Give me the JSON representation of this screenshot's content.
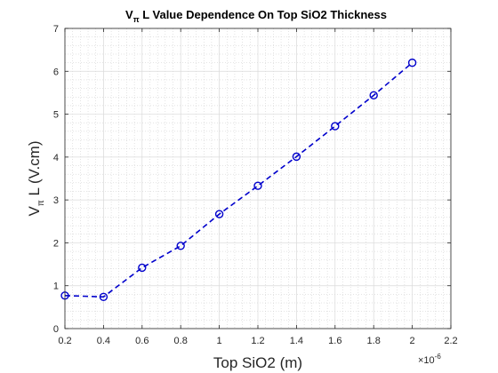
{
  "chart_data": {
    "type": "line",
    "title": {
      "main": "V",
      "sub": "π",
      "rest": " L Value Dependence On Top SiO2 Thickness"
    },
    "xlabel": "Top SiO2 (m)",
    "ylabel": {
      "main": "V",
      "sub": "π",
      "rest": " L (V.cm)"
    },
    "x_exponent": {
      "base": "×10",
      "power": "-6"
    },
    "xlim": [
      0.2,
      2.2
    ],
    "ylim": [
      0,
      7
    ],
    "xticks": [
      0.2,
      0.4,
      0.6,
      0.8,
      1,
      1.2,
      1.4,
      1.6,
      1.8,
      2,
      2.2
    ],
    "xtick_labels": [
      "0.2",
      "0.4",
      "0.6",
      "0.8",
      "1",
      "1.2",
      "1.4",
      "1.6",
      "1.8",
      "2",
      "2.2"
    ],
    "yticks": [
      0,
      1,
      2,
      3,
      4,
      5,
      6,
      7
    ],
    "ytick_labels": [
      "0",
      "1",
      "2",
      "3",
      "4",
      "5",
      "6",
      "7"
    ],
    "grid": true,
    "minor_grid": true,
    "series": [
      {
        "x": [
          0.2,
          0.4,
          0.6,
          0.8,
          1.0,
          1.2,
          1.4,
          1.6,
          1.8,
          2.0
        ],
        "y": [
          0.77,
          0.74,
          1.42,
          1.93,
          2.67,
          3.33,
          4.01,
          4.72,
          5.44,
          6.2
        ],
        "color": "#0000cc",
        "line_style": "dashed",
        "marker": "circle"
      }
    ]
  }
}
